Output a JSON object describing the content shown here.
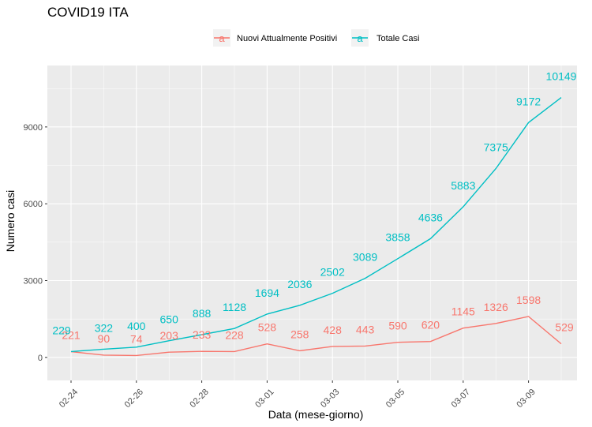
{
  "chart_data": {
    "type": "line",
    "title": "COVID19 ITA",
    "xlabel": "Data (mese-giorno)",
    "ylabel": "Numero casi",
    "ylim": [
      -900,
      11400
    ],
    "yticks": [
      0,
      3000,
      6000,
      9000
    ],
    "xticks": [
      "02-24",
      "02-26",
      "02-28",
      "03-01",
      "03-03",
      "03-05",
      "03-07",
      "03-09"
    ],
    "x": [
      "02-24",
      "02-25",
      "02-26",
      "02-27",
      "02-28",
      "02-29",
      "03-01",
      "03-02",
      "03-03",
      "03-04",
      "03-05",
      "03-06",
      "03-07",
      "03-08",
      "03-09",
      "03-10"
    ],
    "grid": true,
    "legend_position": "top",
    "panel_background": "#ebebeb",
    "series": [
      {
        "name": "Nuovi Attualmente Positivi",
        "color": "#f8766d",
        "values": [
          221,
          90,
          74,
          203,
          233,
          228,
          528,
          258,
          428,
          443,
          590,
          620,
          1145,
          1326,
          1598,
          529
        ]
      },
      {
        "name": "Totale Casi",
        "color": "#00bfc4",
        "values": [
          229,
          322,
          400,
          650,
          888,
          1128,
          1694,
          2036,
          2502,
          3089,
          3858,
          4636,
          5883,
          7375,
          9172,
          10149
        ]
      }
    ],
    "legend_key_glyph": "a"
  }
}
